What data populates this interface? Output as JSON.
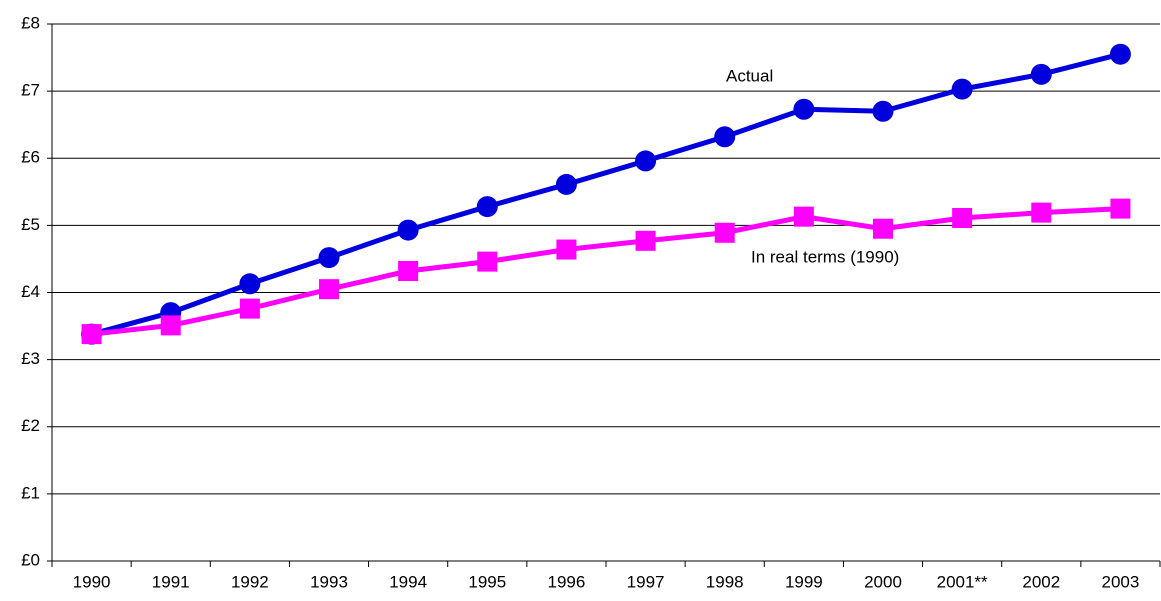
{
  "chart_data": {
    "type": "line",
    "categories": [
      "1990",
      "1991",
      "1992",
      "1993",
      "1994",
      "1995",
      "1996",
      "1997",
      "1998",
      "1999",
      "2000",
      "2001**",
      "2002",
      "2003"
    ],
    "series": [
      {
        "name": "Actual",
        "color": "#0000dd",
        "marker": "circle",
        "values": [
          3.38,
          3.7,
          4.13,
          4.52,
          4.93,
          5.28,
          5.61,
          5.96,
          6.32,
          6.73,
          6.7,
          7.03,
          7.25,
          7.55
        ]
      },
      {
        "name": "In real terms (1990)",
        "color": "#ff00ff",
        "marker": "square",
        "values": [
          3.38,
          3.51,
          3.76,
          4.05,
          4.32,
          4.46,
          4.64,
          4.77,
          4.89,
          5.13,
          4.95,
          5.11,
          5.19,
          5.25
        ]
      }
    ],
    "ylim": [
      0,
      8
    ],
    "yticks": [
      {
        "value": 0,
        "label": "£0"
      },
      {
        "value": 1,
        "label": "£1"
      },
      {
        "value": 2,
        "label": "£2"
      },
      {
        "value": 3,
        "label": "£3"
      },
      {
        "value": 4,
        "label": "£4"
      },
      {
        "value": 5,
        "label": "£5"
      },
      {
        "value": 6,
        "label": "£6"
      },
      {
        "value": 7,
        "label": "£7"
      },
      {
        "value": 8,
        "label": "£8"
      }
    ],
    "grid": true
  }
}
